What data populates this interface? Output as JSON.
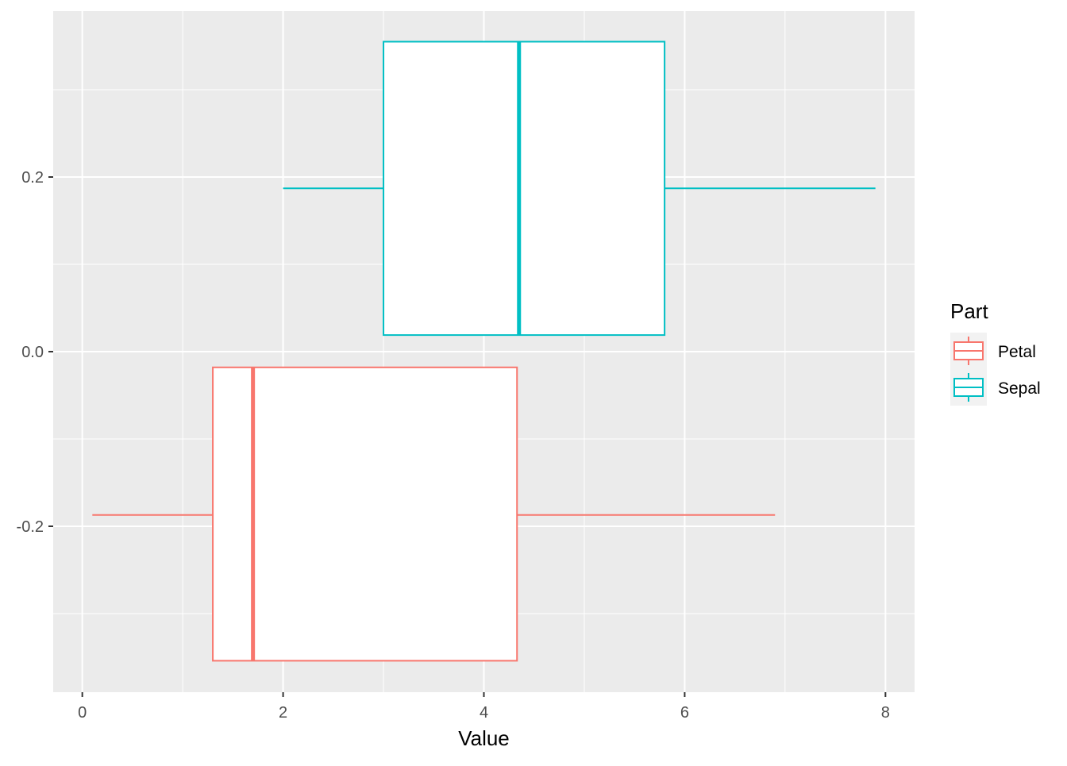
{
  "chart_data": {
    "type": "boxplot",
    "orientation": "horizontal",
    "xlabel": "Value",
    "ylabel": "",
    "xlim": [
      -0.29,
      8.29
    ],
    "ylim": [
      -0.39,
      0.39
    ],
    "x_ticks": [
      0,
      2,
      4,
      6,
      8
    ],
    "x_tick_labels": [
      "0",
      "2",
      "4",
      "6",
      "8"
    ],
    "y_ticks": [
      -0.2,
      0.0,
      0.2
    ],
    "y_tick_labels": [
      "-0.2",
      "0.0",
      "0.2"
    ],
    "grid": true,
    "legend": {
      "title": "Part",
      "placement": "right",
      "entries": [
        {
          "name": "Petal",
          "color": "#F8766D"
        },
        {
          "name": "Sepal",
          "color": "#00BFC4"
        }
      ]
    },
    "series": [
      {
        "name": "Petal",
        "color": "#F8766D",
        "ymin": -0.354,
        "ymax": -0.018,
        "ywhisker": -0.187,
        "whisker_low": 0.1,
        "q1": 1.3,
        "median": 1.7,
        "q3": 4.33,
        "whisker_high": 6.9
      },
      {
        "name": "Sepal",
        "color": "#00BFC4",
        "ymin": 0.019,
        "ymax": 0.355,
        "ywhisker": 0.187,
        "whisker_low": 2.0,
        "q1": 3.0,
        "median": 4.35,
        "q3": 5.8,
        "whisker_high": 7.9
      }
    ],
    "panel_background": "#EBEBEB",
    "grid_color": "#FFFFFF"
  }
}
